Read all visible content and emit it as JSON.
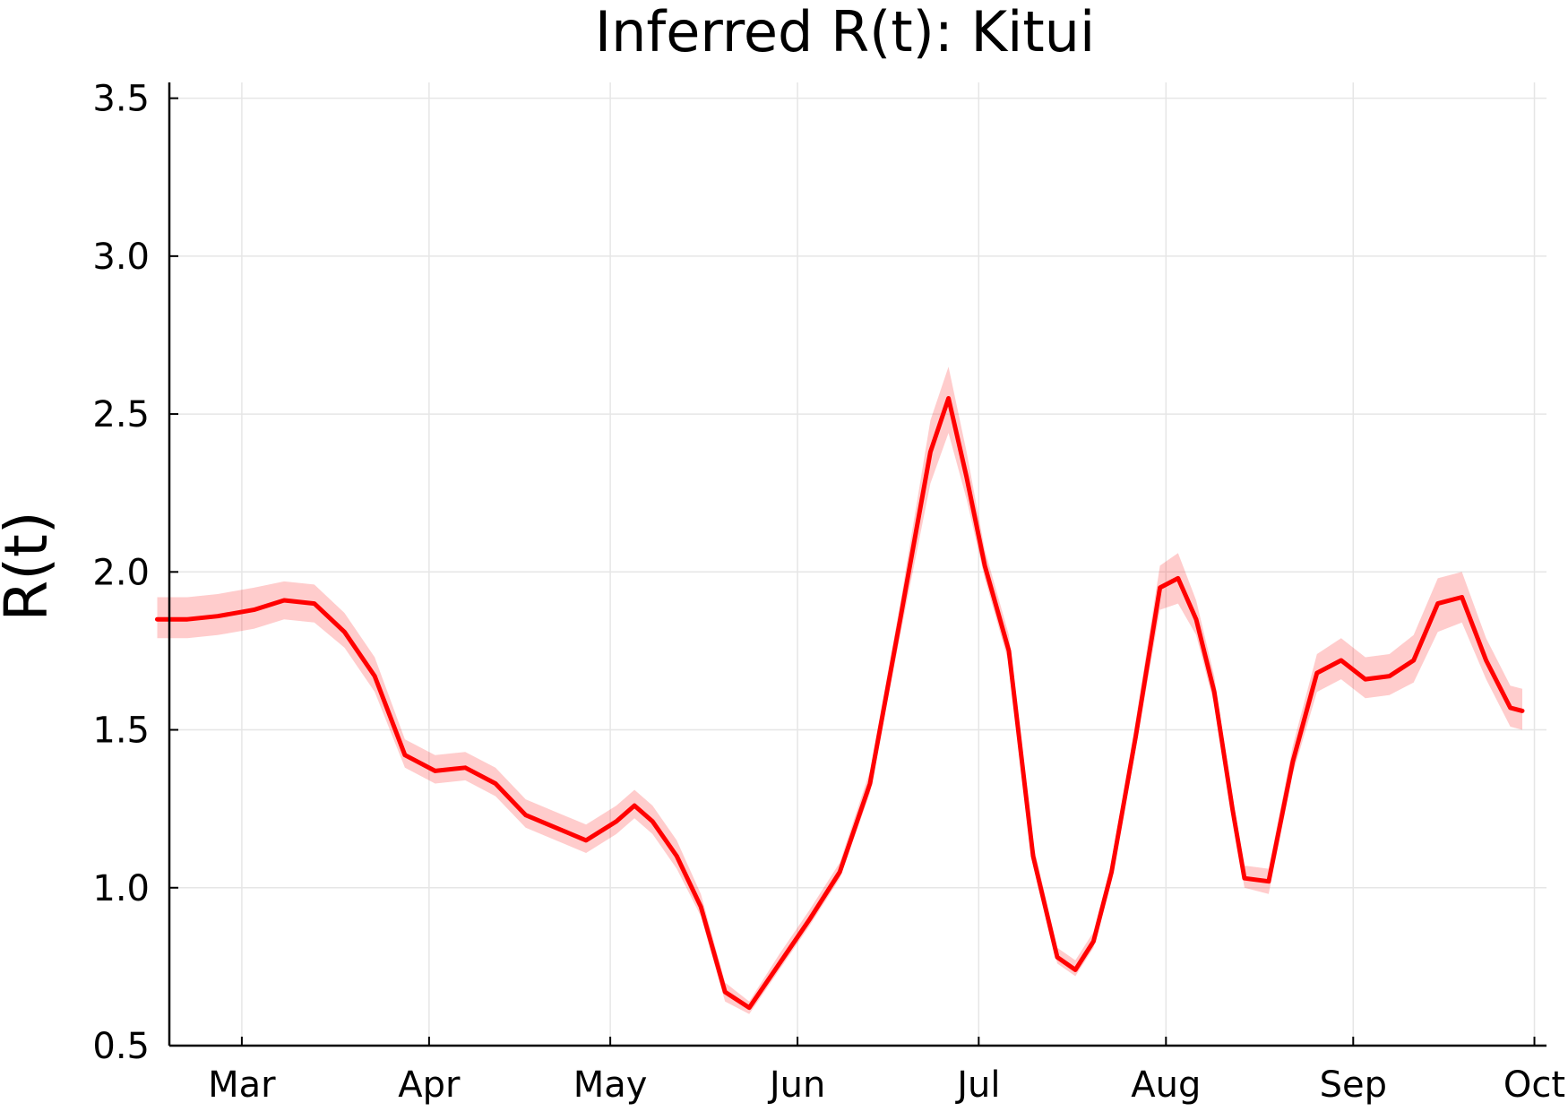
{
  "chart_data": {
    "type": "line",
    "title": "Inferred R(t): Kitui",
    "xlabel": "",
    "ylabel": "R(t)",
    "xlim": [
      "2020-02-18",
      "2020-10-03"
    ],
    "ylim": [
      0.5,
      3.55
    ],
    "x_ticks": [
      "2020-03-01",
      "2020-04-01",
      "2020-05-01",
      "2020-06-01",
      "2020-07-01",
      "2020-08-01",
      "2020-09-01",
      "2020-10-01"
    ],
    "x_tick_labels": [
      "Mar",
      "Apr",
      "May",
      "Jun",
      "Jul",
      "Aug",
      "Sep",
      "Oct"
    ],
    "y_ticks": [
      0.5,
      1.0,
      1.5,
      2.0,
      2.5,
      3.0,
      3.5
    ],
    "y_tick_labels": [
      "0.5",
      "1.0",
      "1.5",
      "2.0",
      "2.5",
      "3.0",
      "3.5"
    ],
    "grid": true,
    "legend": "none",
    "colors": {
      "line": "#ff0000",
      "band": "#ff0000",
      "grid": "#e6e6e6",
      "axis": "#000000"
    },
    "series": [
      {
        "x": [
          "2020-02-16",
          "2020-02-21",
          "2020-02-26",
          "2020-03-03",
          "2020-03-08",
          "2020-03-13",
          "2020-03-18",
          "2020-03-23",
          "2020-03-28",
          "2020-04-02",
          "2020-04-07",
          "2020-04-12",
          "2020-04-17",
          "2020-04-22",
          "2020-04-27",
          "2020-05-02",
          "2020-05-05",
          "2020-05-08",
          "2020-05-12",
          "2020-05-16",
          "2020-05-20",
          "2020-05-24",
          "2020-05-29",
          "2020-06-03",
          "2020-06-08",
          "2020-06-13",
          "2020-06-18",
          "2020-06-23",
          "2020-06-26",
          "2020-06-29",
          "2020-07-02",
          "2020-07-06",
          "2020-07-10",
          "2020-07-14",
          "2020-07-17",
          "2020-07-20",
          "2020-07-23",
          "2020-07-27",
          "2020-07-31",
          "2020-08-03",
          "2020-08-06",
          "2020-08-09",
          "2020-08-12",
          "2020-08-14",
          "2020-08-18",
          "2020-08-22",
          "2020-08-26",
          "2020-08-30",
          "2020-09-03",
          "2020-09-07",
          "2020-09-11",
          "2020-09-15",
          "2020-09-19",
          "2020-09-23",
          "2020-09-27",
          "2020-09-29"
        ],
        "y": [
          1.85,
          1.85,
          1.86,
          1.88,
          1.91,
          1.9,
          1.81,
          1.67,
          1.42,
          1.37,
          1.38,
          1.33,
          1.23,
          1.19,
          1.15,
          1.21,
          1.26,
          1.21,
          1.1,
          0.94,
          0.67,
          0.62,
          0.76,
          0.9,
          1.05,
          1.33,
          1.85,
          2.38,
          2.55,
          2.3,
          2.02,
          1.75,
          1.1,
          0.78,
          0.74,
          0.83,
          1.05,
          1.48,
          1.95,
          1.98,
          1.85,
          1.62,
          1.25,
          1.03,
          1.02,
          1.4,
          1.68,
          1.72,
          1.66,
          1.67,
          1.72,
          1.9,
          1.92,
          1.72,
          1.57,
          1.56
        ],
        "lower": [
          1.79,
          1.79,
          1.8,
          1.82,
          1.85,
          1.84,
          1.76,
          1.62,
          1.38,
          1.33,
          1.34,
          1.29,
          1.19,
          1.15,
          1.11,
          1.17,
          1.22,
          1.17,
          1.06,
          0.91,
          0.64,
          0.6,
          0.74,
          0.88,
          1.03,
          1.3,
          1.8,
          2.28,
          2.44,
          2.23,
          1.98,
          1.71,
          1.07,
          0.76,
          0.72,
          0.81,
          1.02,
          1.44,
          1.88,
          1.9,
          1.8,
          1.58,
          1.22,
          1.0,
          0.98,
          1.36,
          1.62,
          1.66,
          1.6,
          1.61,
          1.65,
          1.81,
          1.84,
          1.66,
          1.51,
          1.5
        ],
        "upper": [
          1.92,
          1.92,
          1.93,
          1.95,
          1.97,
          1.96,
          1.87,
          1.73,
          1.47,
          1.42,
          1.43,
          1.38,
          1.28,
          1.24,
          1.2,
          1.26,
          1.31,
          1.26,
          1.15,
          0.98,
          0.7,
          0.64,
          0.79,
          0.93,
          1.08,
          1.37,
          1.9,
          2.48,
          2.65,
          2.38,
          2.07,
          1.8,
          1.14,
          0.81,
          0.77,
          0.86,
          1.08,
          1.53,
          2.02,
          2.06,
          1.91,
          1.67,
          1.29,
          1.07,
          1.06,
          1.45,
          1.74,
          1.79,
          1.73,
          1.74,
          1.8,
          1.98,
          2.0,
          1.79,
          1.64,
          1.63
        ]
      }
    ]
  }
}
